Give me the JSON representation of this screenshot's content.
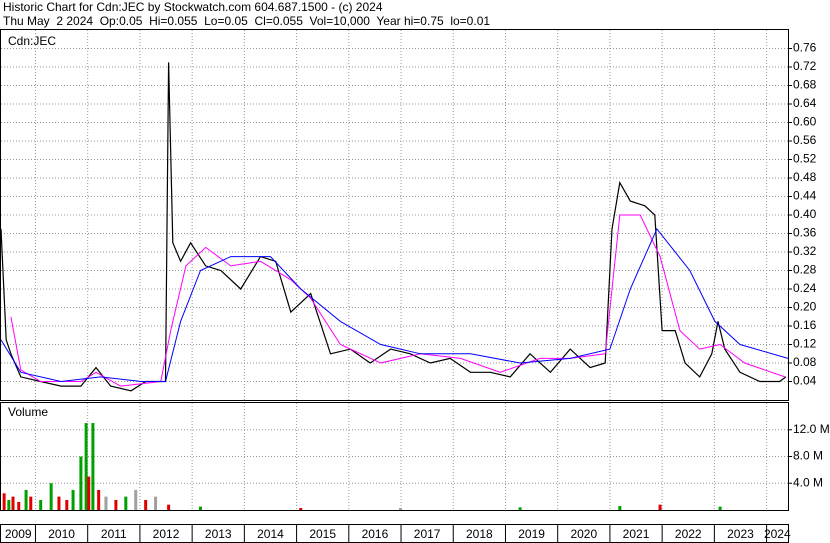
{
  "header": {
    "title": "Historic Chart for Cdn:JEC by Stockwatch.com 604.687.1500 - (c) 2024",
    "quote": "Thu May  2 2024  Op:0.05  Hi=0.055  Lo=0.05  Cl=0.055  Vol=10,000  Year hi=0.75  lo=0.01"
  },
  "chart_data": [
    {
      "type": "line",
      "label": "Cdn:JEC",
      "grid": true,
      "xlim": [
        2009.34,
        2024.41
      ],
      "xticks": [
        2009,
        2010,
        2011,
        2012,
        2013,
        2014,
        2015,
        2016,
        2017,
        2018,
        2019,
        2020,
        2021,
        2022,
        2023,
        2024
      ],
      "ylim": [
        0,
        0.8
      ],
      "yticks": [
        0.04,
        0.08,
        0.12,
        0.16,
        {
          "value": 0.2,
          "label": "0.20"
        },
        0.24,
        0.28,
        0.32,
        0.36,
        {
          "value": 0.4,
          "label": "0.40"
        },
        0.44,
        0.48,
        0.52,
        0.56,
        {
          "value": 0.6,
          "label": "0.60"
        },
        0.64,
        0.68,
        0.72,
        0.76
      ],
      "series": [
        {
          "color": "#000000",
          "x": [
            2009.34,
            2009.44,
            2009.53,
            2009.72,
            2010.1,
            2010.49,
            2010.87,
            2011.16,
            2011.44,
            2011.83,
            2012.11,
            2012.49,
            2012.55,
            2012.63,
            2012.78,
            2012.97,
            2013.26,
            2013.55,
            2013.93,
            2014.31,
            2014.6,
            2014.89,
            2015.27,
            2015.65,
            2016.03,
            2016.41,
            2016.8,
            2017.18,
            2017.56,
            2017.94,
            2018.33,
            2018.71,
            2019.09,
            2019.47,
            2019.86,
            2020.24,
            2020.62,
            2020.91,
            2021.04,
            2021.19,
            2021.39,
            2021.67,
            2021.86,
            2022.0,
            2022.25,
            2022.44,
            2022.72,
            2022.95,
            2023.07,
            2023.2,
            2023.49,
            2023.87,
            2024.25,
            2024.37
          ],
          "values": [
            0.37,
            0.13,
            0.1,
            0.05,
            0.04,
            0.03,
            0.03,
            0.07,
            0.03,
            0.02,
            0.04,
            0.04,
            0.73,
            0.34,
            0.3,
            0.34,
            0.29,
            0.28,
            0.24,
            0.31,
            0.3,
            0.19,
            0.23,
            0.1,
            0.11,
            0.08,
            0.11,
            0.1,
            0.08,
            0.09,
            0.06,
            0.06,
            0.05,
            0.1,
            0.06,
            0.11,
            0.07,
            0.08,
            0.37,
            0.47,
            0.43,
            0.42,
            0.4,
            0.15,
            0.15,
            0.08,
            0.05,
            0.1,
            0.17,
            0.11,
            0.06,
            0.04,
            0.04,
            0.05
          ]
        },
        {
          "color": "#ff00ff",
          "x": [
            2009.53,
            2009.72,
            2010.1,
            2010.87,
            2011.16,
            2011.63,
            2012.4,
            2012.59,
            2012.88,
            2013.26,
            2013.74,
            2014.31,
            2014.89,
            2015.27,
            2015.84,
            2016.61,
            2017.37,
            2018.14,
            2018.9,
            2019.66,
            2020.24,
            2020.91,
            2021.19,
            2021.58,
            2021.96,
            2022.34,
            2022.72,
            2023.11,
            2023.58,
            2024.35
          ],
          "values": [
            0.18,
            0.065,
            0.04,
            0.04,
            0.06,
            0.03,
            0.04,
            0.15,
            0.29,
            0.33,
            0.29,
            0.3,
            0.26,
            0.22,
            0.12,
            0.08,
            0.1,
            0.09,
            0.06,
            0.09,
            0.09,
            0.1,
            0.4,
            0.4,
            0.31,
            0.15,
            0.11,
            0.12,
            0.08,
            0.05
          ]
        },
        {
          "color": "#0000ff",
          "x": [
            2009.34,
            2009.72,
            2010.49,
            2011.25,
            2012.02,
            2012.49,
            2012.78,
            2013.16,
            2013.74,
            2014.5,
            2015.08,
            2015.84,
            2016.61,
            2017.37,
            2018.33,
            2019.28,
            2020.24,
            2021.0,
            2021.39,
            2021.9,
            2022.53,
            2023.01,
            2023.49,
            2024.41
          ],
          "values": [
            0.13,
            0.06,
            0.04,
            0.05,
            0.04,
            0.04,
            0.17,
            0.28,
            0.31,
            0.31,
            0.24,
            0.17,
            0.12,
            0.1,
            0.1,
            0.08,
            0.09,
            0.11,
            0.24,
            0.37,
            0.28,
            0.17,
            0.12,
            0.09
          ]
        }
      ]
    },
    {
      "type": "bar",
      "label": "Volume",
      "grid": true,
      "xlim": [
        2009.34,
        2024.41
      ],
      "xticks": [
        2009,
        2010,
        2011,
        2012,
        2013,
        2014,
        2015,
        2016,
        2017,
        2018,
        2019,
        2020,
        2021,
        2022,
        2023,
        2024
      ],
      "ylim": [
        0,
        16000000
      ],
      "yticks": [
        {
          "value": 4000000,
          "label": "4.0 M"
        },
        {
          "value": 8000000,
          "label": "8.0 M"
        },
        {
          "value": 12000000,
          "label": "12.0 M"
        }
      ],
      "x": [
        2009.4,
        2009.49,
        2009.57,
        2009.68,
        2009.82,
        2009.91,
        2010.1,
        2010.3,
        2010.45,
        2010.6,
        2010.72,
        2010.87,
        2010.97,
        2011.02,
        2011.1,
        2011.21,
        2011.35,
        2011.54,
        2011.73,
        2011.92,
        2012.11,
        2012.3,
        2012.55,
        2013.16,
        2015.08,
        2016.99,
        2019.28,
        2021.19,
        2021.96,
        2023.11
      ],
      "values": [
        2500000,
        1500000,
        2000000,
        1200000,
        3000000,
        2000000,
        1500000,
        4000000,
        2000000,
        1500000,
        3000000,
        8000000,
        13000000,
        5000000,
        13000000,
        3000000,
        2000000,
        1500000,
        2000000,
        3000000,
        1500000,
        2000000,
        800000,
        500000,
        300000,
        300000,
        400000,
        600000,
        800000,
        500000
      ],
      "colors": [
        "#e00000",
        "#00a000",
        "#e00000",
        "#e00000",
        "#00a000",
        "#e00000",
        "#00a000",
        "#00a000",
        "#e00000",
        "#e00000",
        "#00a000",
        "#00a000",
        "#00a000",
        "#e00000",
        "#00a000",
        "#e00000",
        "#a0a0a0",
        "#e00000",
        "#00a000",
        "#a0a0a0",
        "#e00000",
        "#a0a0a0",
        "#e00000",
        "#00a000",
        "#e00000",
        "#a0a0a0",
        "#00a000",
        "#00a000",
        "#e00000",
        "#00a000"
      ]
    }
  ]
}
